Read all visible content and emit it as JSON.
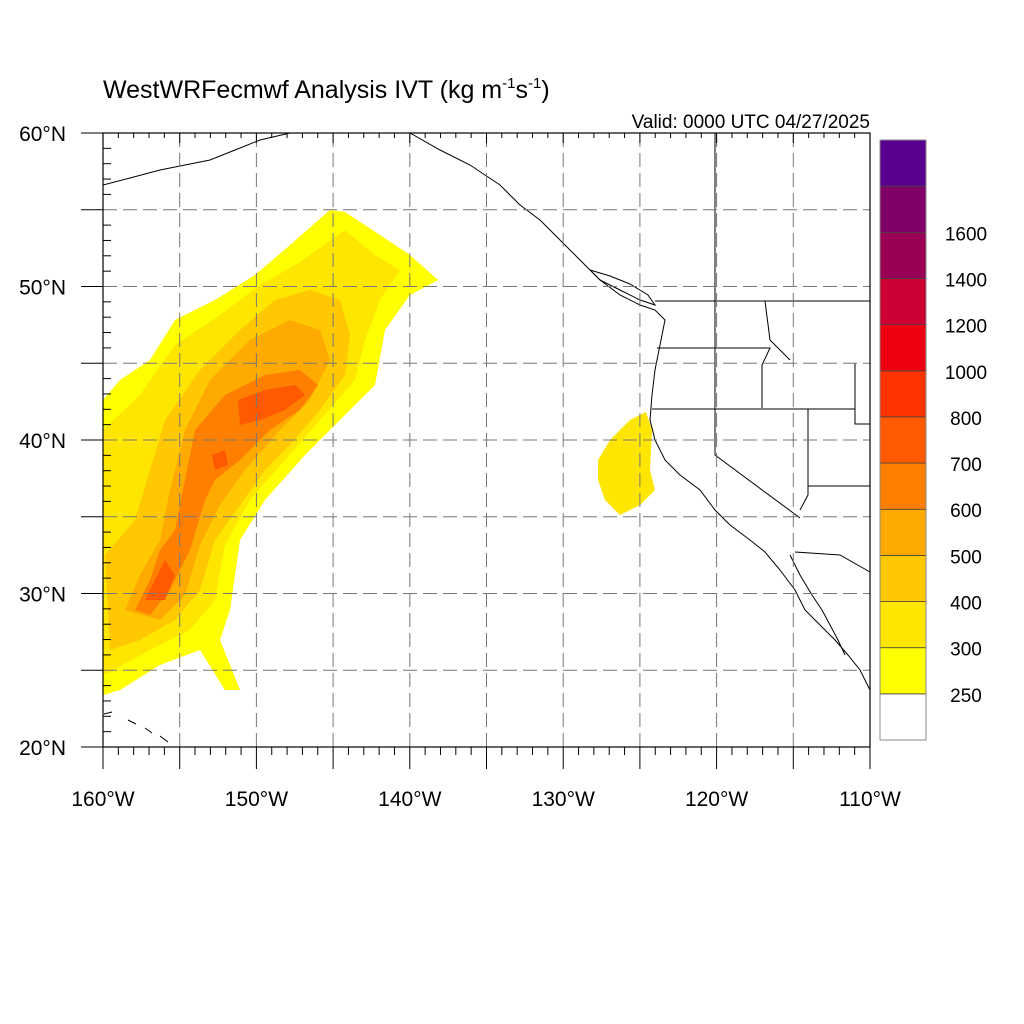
{
  "title": {
    "main": "WestWRFecmwf Analysis IVT (kg m",
    "sup1": "-1",
    "mid": "s",
    "sup2": "-1",
    "close": ")"
  },
  "valid_label": "Valid: 0000 UTC 04/27/2025",
  "axes": {
    "x_ticks": [
      {
        "lon": -160,
        "label": "160°W"
      },
      {
        "lon": -150,
        "label": "150°W"
      },
      {
        "lon": -140,
        "label": "140°W"
      },
      {
        "lon": -130,
        "label": "130°W"
      },
      {
        "lon": -120,
        "label": "120°W"
      },
      {
        "lon": -110,
        "label": "110°W"
      }
    ],
    "y_ticks": [
      {
        "lat": 60,
        "label": "60°N"
      },
      {
        "lat": 50,
        "label": "50°N"
      },
      {
        "lat": 40,
        "label": "40°N"
      },
      {
        "lat": 30,
        "label": "30°N"
      },
      {
        "lat": 20,
        "label": "20°N"
      }
    ],
    "lon_range": [
      -160,
      -110
    ],
    "lat_range": [
      20,
      60
    ],
    "grid": "dashed every 5°"
  },
  "colorbar": {
    "levels": [
      {
        "label": "",
        "color": "#ffffff"
      },
      {
        "label": "250",
        "color": "#ffff00"
      },
      {
        "label": "300",
        "color": "#ffe600"
      },
      {
        "label": "400",
        "color": "#ffc800"
      },
      {
        "label": "500",
        "color": "#ffaa00"
      },
      {
        "label": "600",
        "color": "#ff8000"
      },
      {
        "label": "700",
        "color": "#ff5a00"
      },
      {
        "label": "800",
        "color": "#ff3300"
      },
      {
        "label": "1000",
        "color": "#ee0011"
      },
      {
        "label": "1200",
        "color": "#cc0033"
      },
      {
        "label": "1400",
        "color": "#990055"
      },
      {
        "label": "1600",
        "color": "#7f0066"
      },
      {
        "label": "",
        "color": "#5a0090"
      }
    ]
  }
}
